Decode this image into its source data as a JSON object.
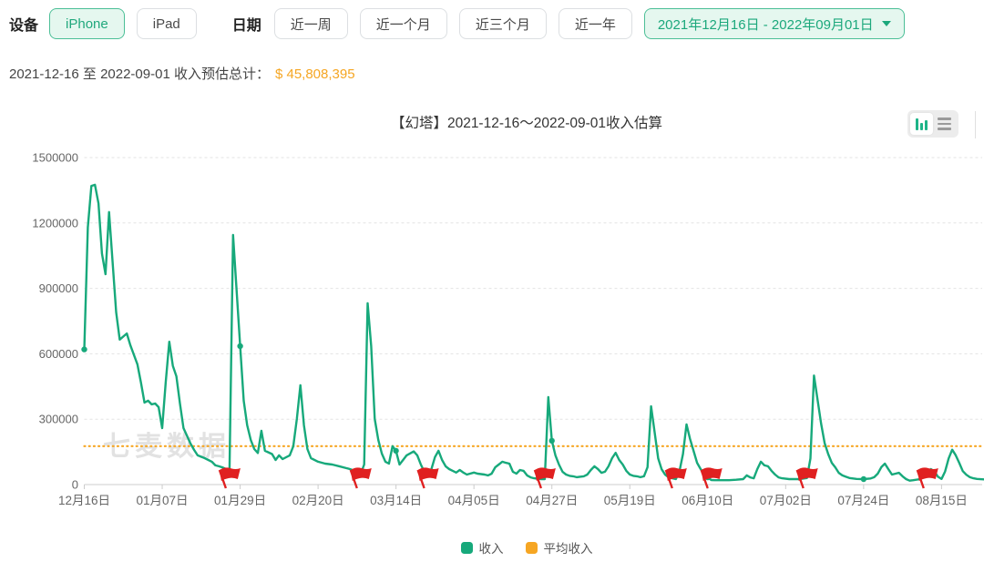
{
  "colors": {
    "accent_green": "#21a87d",
    "accent_green_border": "#4cbf97",
    "accent_green_bg": "#e5f7ef",
    "amount_orange": "#f5a623",
    "flag_red": "#e02020",
    "watermark_gray": "#cfcfcf"
  },
  "icons": {
    "caret": "caret-down-icon",
    "chart_toggle": [
      "bar-chart-icon",
      "list-view-icon"
    ],
    "flag": "red-flag-marker"
  },
  "filters": {
    "device_label": "设备",
    "device_options": [
      {
        "label": "iPhone",
        "selected": true
      },
      {
        "label": "iPad",
        "selected": false
      }
    ],
    "date_label": "日期",
    "date_options": [
      {
        "label": "近一周"
      },
      {
        "label": "近一个月"
      },
      {
        "label": "近三个月"
      },
      {
        "label": "近一年"
      }
    ],
    "date_range": {
      "label": "2021年12月16日 - 2022年09月01日"
    }
  },
  "summary": {
    "prefix": "2021-12-16 至 2022-09-01 收入预估总计：",
    "amount": "$ 45,808,395"
  },
  "chart_data": {
    "type": "line",
    "title": "【幻塔】2021-12-16～2022-09-01收入估算",
    "watermark": "七麦数据",
    "x_axis": {
      "start_date": "2021-12-16",
      "end_date": "2022-09-01",
      "days_per_tick": 22,
      "tick_labels": [
        "12月16日",
        "01月07日",
        "01月29日",
        "02月20日",
        "03月14日",
        "04月05日",
        "04月27日",
        "05月19日",
        "06月10日",
        "07月02日",
        "07月24日",
        "08月15日"
      ]
    },
    "y_axis": {
      "ticks": [
        0,
        300000,
        600000,
        900000,
        1200000,
        1500000
      ],
      "max": 1500000
    },
    "series": [
      {
        "name": "收入",
        "type": "line",
        "color": "#17a97b",
        "points": [
          [
            "12-16",
            620000
          ],
          [
            "12-17",
            1180000
          ],
          [
            "12-18",
            1370000
          ],
          [
            "12-19",
            1375000
          ],
          [
            "12-20",
            1290000
          ],
          [
            "12-21",
            1060000
          ],
          [
            "12-22",
            965000
          ],
          [
            "12-23",
            1250000
          ],
          [
            "12-24",
            1020000
          ],
          [
            "12-25",
            790000
          ],
          [
            "12-26",
            665000
          ],
          [
            "12-28",
            693000
          ],
          [
            "12-29",
            640000
          ],
          [
            "12-31",
            552000
          ],
          [
            "01-01",
            468000
          ],
          [
            "01-02",
            376000
          ],
          [
            "01-03",
            385000
          ],
          [
            "01-04",
            368000
          ],
          [
            "01-05",
            372000
          ],
          [
            "01-06",
            355000
          ],
          [
            "01-07",
            259000
          ],
          [
            "01-08",
            470000
          ],
          [
            "01-09",
            655000
          ],
          [
            "01-10",
            545000
          ],
          [
            "01-11",
            497000
          ],
          [
            "01-12",
            372000
          ],
          [
            "01-13",
            259000
          ],
          [
            "01-15",
            188000
          ],
          [
            "01-16",
            159000
          ],
          [
            "01-17",
            134000
          ],
          [
            "01-19",
            121000
          ],
          [
            "01-21",
            105000
          ],
          [
            "01-22",
            88000
          ],
          [
            "01-23",
            84000
          ],
          [
            "01-24",
            79000
          ],
          [
            "01-25",
            72000
          ],
          [
            "01-26",
            67000
          ],
          [
            "01-27",
            1145000
          ],
          [
            "01-29",
            635000
          ],
          [
            "01-30",
            385000
          ],
          [
            "01-31",
            272000
          ],
          [
            "02-01",
            205000
          ],
          [
            "02-02",
            163000
          ],
          [
            "02-03",
            145000
          ],
          [
            "02-04",
            247000
          ],
          [
            "02-05",
            155000
          ],
          [
            "02-07",
            140000
          ],
          [
            "02-08",
            113000
          ],
          [
            "02-09",
            134000
          ],
          [
            "02-10",
            117000
          ],
          [
            "02-12",
            134000
          ],
          [
            "02-13",
            176000
          ],
          [
            "02-14",
            301000
          ],
          [
            "02-15",
            456000
          ],
          [
            "02-16",
            272000
          ],
          [
            "02-17",
            163000
          ],
          [
            "02-18",
            121000
          ],
          [
            "02-20",
            105000
          ],
          [
            "02-22",
            96000
          ],
          [
            "02-24",
            92000
          ],
          [
            "02-26",
            84000
          ],
          [
            "03-01",
            71000
          ],
          [
            "03-03",
            59000
          ],
          [
            "03-04",
            48000
          ],
          [
            "03-05",
            92000
          ],
          [
            "03-06",
            832000
          ],
          [
            "03-07",
            635000
          ],
          [
            "03-08",
            301000
          ],
          [
            "03-09",
            205000
          ],
          [
            "03-10",
            142000
          ],
          [
            "03-11",
            105000
          ],
          [
            "03-12",
            96000
          ],
          [
            "03-13",
            176000
          ],
          [
            "03-14",
            155000
          ],
          [
            "03-15",
            92000
          ],
          [
            "03-16",
            113000
          ],
          [
            "03-17",
            134000
          ],
          [
            "03-19",
            152000
          ],
          [
            "03-20",
            134000
          ],
          [
            "03-21",
            92000
          ],
          [
            "03-22",
            59000
          ],
          [
            "03-23",
            42000
          ],
          [
            "03-24",
            71000
          ],
          [
            "03-25",
            126000
          ],
          [
            "03-26",
            155000
          ],
          [
            "03-27",
            113000
          ],
          [
            "03-28",
            84000
          ],
          [
            "03-29",
            71000
          ],
          [
            "03-30",
            63000
          ],
          [
            "03-31",
            55000
          ],
          [
            "04-01",
            67000
          ],
          [
            "04-02",
            55000
          ],
          [
            "04-03",
            46000
          ],
          [
            "04-05",
            55000
          ],
          [
            "04-06",
            50000
          ],
          [
            "04-08",
            46000
          ],
          [
            "04-09",
            42000
          ],
          [
            "04-10",
            50000
          ],
          [
            "04-11",
            79000
          ],
          [
            "04-12",
            92000
          ],
          [
            "04-13",
            105000
          ],
          [
            "04-14",
            100000
          ],
          [
            "04-15",
            96000
          ],
          [
            "04-16",
            59000
          ],
          [
            "04-17",
            50000
          ],
          [
            "04-18",
            67000
          ],
          [
            "04-19",
            63000
          ],
          [
            "04-20",
            42000
          ],
          [
            "04-21",
            33000
          ],
          [
            "04-22",
            29000
          ],
          [
            "04-24",
            25000
          ],
          [
            "04-25",
            25000
          ],
          [
            "04-26",
            401000
          ],
          [
            "04-27",
            201000
          ],
          [
            "04-28",
            134000
          ],
          [
            "04-29",
            92000
          ],
          [
            "04-30",
            59000
          ],
          [
            "05-01",
            46000
          ],
          [
            "05-02",
            40000
          ],
          [
            "05-03",
            38000
          ],
          [
            "05-04",
            34000
          ],
          [
            "05-06",
            38000
          ],
          [
            "05-07",
            46000
          ],
          [
            "05-08",
            67000
          ],
          [
            "05-09",
            84000
          ],
          [
            "05-10",
            71000
          ],
          [
            "05-11",
            54000
          ],
          [
            "05-12",
            59000
          ],
          [
            "05-13",
            84000
          ],
          [
            "05-14",
            121000
          ],
          [
            "05-15",
            146000
          ],
          [
            "05-16",
            113000
          ],
          [
            "05-17",
            92000
          ],
          [
            "05-18",
            63000
          ],
          [
            "05-19",
            46000
          ],
          [
            "05-20",
            40000
          ],
          [
            "05-21",
            38000
          ],
          [
            "05-22",
            34000
          ],
          [
            "05-23",
            38000
          ],
          [
            "05-24",
            80000
          ],
          [
            "05-25",
            359000
          ],
          [
            "05-26",
            240000
          ],
          [
            "05-27",
            120000
          ],
          [
            "05-28",
            70000
          ],
          [
            "05-29",
            45000
          ],
          [
            "05-30",
            33000
          ],
          [
            "05-31",
            29000
          ],
          [
            "06-01",
            25000
          ],
          [
            "06-02",
            60000
          ],
          [
            "06-03",
            140000
          ],
          [
            "06-04",
            276000
          ],
          [
            "06-05",
            210000
          ],
          [
            "06-06",
            155000
          ],
          [
            "06-07",
            100000
          ],
          [
            "06-08",
            71000
          ],
          [
            "06-09",
            50000
          ],
          [
            "06-10",
            33000
          ],
          [
            "06-11",
            21000
          ],
          [
            "06-12",
            20000
          ],
          [
            "06-14",
            20000
          ],
          [
            "06-16",
            20000
          ],
          [
            "06-18",
            22000
          ],
          [
            "06-20",
            25000
          ],
          [
            "06-21",
            42000
          ],
          [
            "06-22",
            33000
          ],
          [
            "06-23",
            29000
          ],
          [
            "06-24",
            71000
          ],
          [
            "06-25",
            105000
          ],
          [
            "06-26",
            88000
          ],
          [
            "06-27",
            84000
          ],
          [
            "06-28",
            63000
          ],
          [
            "06-29",
            46000
          ],
          [
            "06-30",
            33000
          ],
          [
            "07-01",
            29000
          ],
          [
            "07-03",
            25000
          ],
          [
            "07-06",
            25000
          ],
          [
            "07-08",
            30000
          ],
          [
            "07-09",
            120000
          ],
          [
            "07-10",
            500000
          ],
          [
            "07-11",
            390000
          ],
          [
            "07-12",
            280000
          ],
          [
            "07-13",
            190000
          ],
          [
            "07-14",
            140000
          ],
          [
            "07-15",
            100000
          ],
          [
            "07-16",
            79000
          ],
          [
            "07-17",
            54000
          ],
          [
            "07-18",
            42000
          ],
          [
            "07-19",
            36000
          ],
          [
            "07-20",
            30000
          ],
          [
            "07-22",
            26000
          ],
          [
            "07-24",
            25000
          ],
          [
            "07-26",
            28000
          ],
          [
            "07-27",
            34000
          ],
          [
            "07-28",
            50000
          ],
          [
            "07-29",
            80000
          ],
          [
            "07-30",
            96000
          ],
          [
            "07-31",
            70000
          ],
          [
            "08-01",
            46000
          ],
          [
            "08-02",
            50000
          ],
          [
            "08-03",
            54000
          ],
          [
            "08-04",
            38000
          ],
          [
            "08-05",
            25000
          ],
          [
            "08-06",
            18000
          ],
          [
            "08-07",
            20000
          ],
          [
            "08-09",
            25000
          ],
          [
            "08-10",
            40000
          ],
          [
            "08-11",
            60000
          ],
          [
            "08-12",
            71000
          ],
          [
            "08-13",
            60000
          ],
          [
            "08-14",
            36000
          ],
          [
            "08-15",
            26000
          ],
          [
            "08-16",
            60000
          ],
          [
            "08-17",
            120000
          ],
          [
            "08-18",
            160000
          ],
          [
            "08-19",
            135000
          ],
          [
            "08-20",
            100000
          ],
          [
            "08-21",
            62000
          ],
          [
            "08-22",
            45000
          ],
          [
            "08-23",
            34000
          ],
          [
            "08-24",
            29000
          ],
          [
            "08-25",
            26000
          ],
          [
            "08-27",
            24000
          ],
          [
            "08-29",
            23000
          ],
          [
            "08-31",
            22000
          ],
          [
            "09-01",
            22000
          ]
        ]
      },
      {
        "name": "平均收入",
        "type": "average-line",
        "style": "dotted",
        "color": "#f6a623",
        "value": 176186
      }
    ],
    "flags": {
      "color": "#e02020",
      "dates": [
        "01-26",
        "03-04",
        "03-23",
        "04-25",
        "06-01",
        "06-11",
        "07-08",
        "08-11"
      ]
    },
    "marker_dots": [
      "12-16",
      "01-29",
      "03-14",
      "04-27",
      "06-10",
      "07-24"
    ]
  }
}
